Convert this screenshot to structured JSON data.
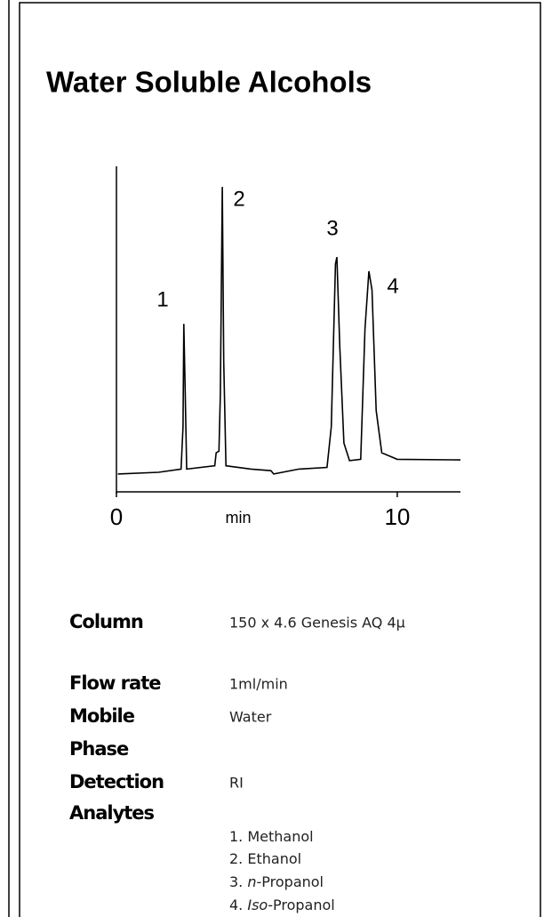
{
  "header": {
    "title": "Water Soluble Alcohols"
  },
  "chart_data": {
    "type": "line",
    "xlabel": "min",
    "x": [
      0.05,
      1.5,
      2.3,
      2.37,
      2.4,
      2.45,
      2.5,
      3.5,
      3.55,
      3.65,
      3.7,
      3.77,
      3.82,
      3.9,
      4.8,
      5.5,
      5.6,
      6.5,
      7.5,
      7.65,
      7.8,
      7.85,
      7.95,
      8.1,
      8.3,
      8.7,
      8.85,
      8.99,
      9.1,
      9.25,
      9.45,
      10,
      12.25
    ],
    "values": [
      5.5,
      6,
      7,
      20,
      51.6,
      30,
      7,
      8,
      12,
      12.5,
      30,
      93.7,
      40,
      8,
      7,
      6.5,
      5.5,
      7,
      7.5,
      20,
      70,
      72.1,
      45,
      15,
      9.6,
      10,
      50,
      67.8,
      62,
      25,
      12,
      10,
      9.8
    ],
    "color": "#000000",
    "xlim": [
      0,
      12.25
    ],
    "ylim": [
      0,
      100
    ],
    "xticks": [
      0,
      10
    ],
    "peak_labels": [
      "1",
      "2",
      "3",
      "4"
    ]
  },
  "conditions": {
    "rows": [
      {
        "label": "Column",
        "value": "150 x 4.6 Genesis AQ 4µ"
      },
      {
        "label": "Flow rate",
        "value": "1ml/min"
      },
      {
        "label": "Mobile",
        "value": "Water"
      },
      {
        "label": "Phase",
        "value": null
      },
      {
        "label": "Detection",
        "value": "RI"
      },
      {
        "label": "Analytes",
        "value": null
      }
    ],
    "analytes": [
      {
        "number": "1.",
        "italic": null,
        "rest": "Methanol"
      },
      {
        "number": "2.",
        "italic": null,
        "rest": "Ethanol"
      },
      {
        "number": "3.",
        "italic": "n",
        "rest": "-Propanol"
      },
      {
        "number": "4.",
        "italic": "Iso",
        "rest": "-Propanol"
      }
    ]
  }
}
